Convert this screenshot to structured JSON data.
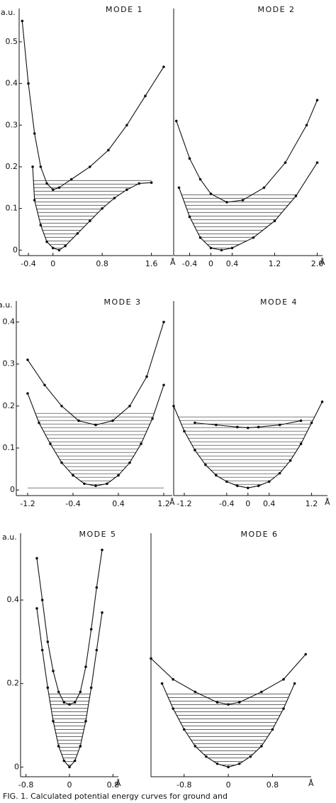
{
  "chart_data": [
    {
      "type": "line",
      "title": "MODE 1",
      "x_label": "Å",
      "y_label": "a.u.",
      "xlim": [
        -0.55,
        1.95
      ],
      "ylim": [
        -0.02,
        0.58
      ],
      "xticks": [
        -0.4,
        0,
        0.8,
        1.6
      ],
      "yticks": [
        0,
        0.1,
        0.2,
        0.3,
        0.4,
        0.5
      ],
      "series": [
        {
          "x": [
            -0.33,
            -0.3,
            -0.2,
            -0.1,
            0,
            0.1,
            0.2,
            0.4,
            0.6,
            0.8,
            1.0,
            1.2,
            1.4,
            1.6
          ],
          "values": [
            0.2,
            0.12,
            0.06,
            0.02,
            0.005,
            0,
            0.01,
            0.04,
            0.07,
            0.1,
            0.125,
            0.145,
            0.16,
            0.162
          ]
        },
        {
          "x": [
            -0.5,
            -0.4,
            -0.3,
            -0.2,
            -0.1,
            0,
            0.1,
            0.3,
            0.6,
            0.9,
            1.2,
            1.5,
            1.8
          ],
          "values": [
            0.55,
            0.4,
            0.28,
            0.2,
            0.16,
            0.145,
            0.15,
            0.17,
            0.2,
            0.24,
            0.3,
            0.37,
            0.44
          ]
        }
      ]
    },
    {
      "type": "line",
      "title": "MODE 2",
      "x_label": "Å",
      "xlim": [
        -0.7,
        2.1
      ],
      "ylim": [
        -0.02,
        0.58
      ],
      "xticks": [
        -0.4,
        0,
        0.4,
        1.2,
        {
          "value": 2,
          "label": "2.0"
        }
      ],
      "series": [
        {
          "x": [
            -0.6,
            -0.4,
            -0.2,
            0,
            0.2,
            0.4,
            0.8,
            1.2,
            1.6,
            2.0
          ],
          "values": [
            0.15,
            0.08,
            0.03,
            0.005,
            0,
            0.005,
            0.03,
            0.07,
            0.13,
            0.21
          ]
        },
        {
          "x": [
            -0.65,
            -0.4,
            -0.2,
            0,
            0.3,
            0.6,
            1.0,
            1.4,
            1.8,
            2.0
          ],
          "values": [
            0.31,
            0.22,
            0.17,
            0.135,
            0.115,
            0.12,
            0.15,
            0.21,
            0.3,
            0.36
          ]
        }
      ]
    },
    {
      "type": "line",
      "title": "MODE 3",
      "x_label": "Å",
      "y_label": "a.u.",
      "xlim": [
        -1.4,
        1.35
      ],
      "ylim": [
        -0.02,
        0.45
      ],
      "xticks": [
        -1.2,
        -0.4,
        0.4,
        1.2
      ],
      "yticks": [
        0,
        0.1,
        0.2,
        0.3,
        0.4
      ],
      "series": [
        {
          "x": [
            -1.2,
            -1.0,
            -0.8,
            -0.6,
            -0.4,
            -0.2,
            0,
            0.2,
            0.4,
            0.6,
            0.8,
            1.0,
            1.2
          ],
          "values": [
            0.23,
            0.16,
            0.11,
            0.065,
            0.035,
            0.015,
            0.01,
            0.015,
            0.035,
            0.065,
            0.11,
            0.17,
            0.25
          ]
        },
        {
          "x": [
            -1.2,
            -0.9,
            -0.6,
            -0.3,
            0,
            0.3,
            0.6,
            0.9,
            1.2
          ],
          "values": [
            0.31,
            0.25,
            0.2,
            0.165,
            0.155,
            0.165,
            0.2,
            0.27,
            0.4
          ]
        }
      ]
    },
    {
      "type": "line",
      "title": "MODE 4",
      "x_label": "Å",
      "xlim": [
        -1.4,
        1.5
      ],
      "ylim": [
        -0.02,
        0.45
      ],
      "xticks": [
        -1.2,
        -0.4,
        0,
        0.4,
        1.2
      ],
      "series": [
        {
          "x": [
            -1.4,
            -1.2,
            -1.0,
            -0.8,
            -0.6,
            -0.4,
            -0.2,
            0,
            0.2,
            0.4,
            0.6,
            0.8,
            1.0,
            1.2,
            1.4
          ],
          "values": [
            0.2,
            0.14,
            0.095,
            0.06,
            0.035,
            0.02,
            0.01,
            0.005,
            0.01,
            0.02,
            0.04,
            0.07,
            0.11,
            0.16,
            0.21
          ]
        },
        {
          "x": [
            -1.0,
            -0.6,
            -0.2,
            0,
            0.2,
            0.6,
            1.0
          ],
          "values": [
            0.16,
            0.155,
            0.15,
            0.148,
            0.15,
            0.155,
            0.165
          ]
        }
      ]
    },
    {
      "type": "line",
      "title": "MODE 5",
      "x_label": "Å",
      "y_label": "a.u.",
      "xlim": [
        -0.9,
        0.9
      ],
      "ylim": [
        -0.03,
        0.56
      ],
      "xticks": [
        -0.8,
        0,
        0.8
      ],
      "yticks": [
        0,
        0.2,
        0.4
      ],
      "series": [
        {
          "x": [
            -0.6,
            -0.5,
            -0.4,
            -0.3,
            -0.2,
            -0.1,
            0,
            0.1,
            0.2,
            0.3,
            0.4,
            0.5,
            0.6
          ],
          "values": [
            0.38,
            0.28,
            0.19,
            0.11,
            0.05,
            0.015,
            0,
            0.015,
            0.05,
            0.11,
            0.19,
            0.28,
            0.37
          ]
        },
        {
          "x": [
            -0.6,
            -0.5,
            -0.4,
            -0.3,
            -0.2,
            -0.1,
            0,
            0.1,
            0.2,
            0.3,
            0.4,
            0.5,
            0.6
          ],
          "values": [
            0.5,
            0.4,
            0.3,
            0.23,
            0.18,
            0.155,
            0.15,
            0.155,
            0.18,
            0.24,
            0.33,
            0.43,
            0.52
          ]
        }
      ]
    },
    {
      "type": "line",
      "title": "MODE 6",
      "x_label": "Å",
      "xlim": [
        -1.4,
        1.5
      ],
      "ylim": [
        -0.03,
        0.56
      ],
      "xticks": [
        -0.8,
        0,
        0.8
      ],
      "series": [
        {
          "x": [
            -1.2,
            -1.0,
            -0.8,
            -0.6,
            -0.4,
            -0.2,
            0,
            0.2,
            0.4,
            0.6,
            0.8,
            1.0,
            1.2
          ],
          "values": [
            0.2,
            0.14,
            0.09,
            0.05,
            0.025,
            0.008,
            0,
            0.008,
            0.025,
            0.05,
            0.09,
            0.14,
            0.2
          ]
        },
        {
          "x": [
            -1.4,
            -1.0,
            -0.6,
            -0.2,
            0,
            0.2,
            0.6,
            1.0,
            1.4
          ],
          "values": [
            0.26,
            0.21,
            0.18,
            0.155,
            0.15,
            0.155,
            0.18,
            0.21,
            0.27
          ]
        }
      ]
    }
  ],
  "caption": "FIG. 1. Calculated potential energy curves for ground and"
}
